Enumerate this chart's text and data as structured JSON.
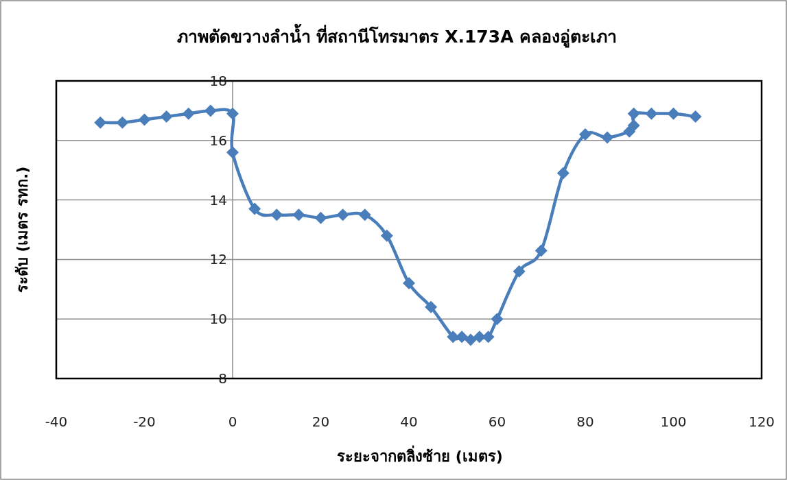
{
  "chart_data": {
    "type": "line",
    "title": "ภาพตัดขวางลำน้ำ ที่สถานีโทรมาตร X.173A คลองอู่ตะเภา",
    "xlabel": "ระยะจากตลิ่งซ้าย (เมตร)",
    "ylabel": "ระดับ (เมตร รทก.)",
    "x": [
      -30,
      -25,
      -20,
      -15,
      -10,
      -5,
      0,
      0,
      5,
      10,
      15,
      20,
      25,
      30,
      35,
      40,
      45,
      50,
      52,
      54,
      56,
      58,
      60,
      65,
      70,
      75,
      80,
      85,
      90,
      91,
      91,
      95,
      100,
      105
    ],
    "values": [
      16.6,
      16.6,
      16.7,
      16.8,
      16.9,
      17.0,
      16.9,
      15.6,
      13.7,
      13.5,
      13.5,
      13.4,
      13.5,
      13.5,
      12.8,
      11.2,
      10.4,
      9.4,
      9.4,
      9.3,
      9.4,
      9.4,
      10.0,
      11.6,
      12.3,
      14.9,
      16.2,
      16.1,
      16.3,
      16.5,
      16.9,
      16.9,
      16.9,
      16.8
    ],
    "color": "#4a7ebb",
    "marker": "diamond",
    "grid": "y",
    "xlim": [
      -40,
      120
    ],
    "ylim": [
      8,
      18
    ],
    "xticks": [
      -40,
      -20,
      0,
      20,
      40,
      60,
      80,
      100,
      120
    ],
    "yticks": [
      8,
      10,
      12,
      14,
      16,
      18
    ]
  }
}
